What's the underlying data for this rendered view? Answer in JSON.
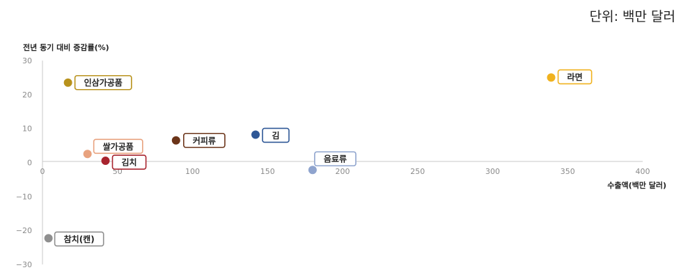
{
  "unit_note": "단위: 백만 달러",
  "chart_data": {
    "type": "scatter",
    "xlabel": "수출액(백만 달러)",
    "ylabel": "전년 동기 대비 증감률(%)",
    "xlim": [
      0,
      400
    ],
    "ylim": [
      -30,
      30
    ],
    "x_ticks": [
      "0",
      "50",
      "100",
      "150",
      "200",
      "250",
      "300",
      "350",
      "400"
    ],
    "y_ticks": [
      "30",
      "20",
      "10",
      "0",
      "−10",
      "−20",
      "−30"
    ],
    "grid": false,
    "points": [
      {
        "name": "인삼가공품",
        "x": 17,
        "y": 23.5,
        "color": "#B8921C"
      },
      {
        "name": "라면",
        "x": 339,
        "y": 25,
        "color": "#F0B21E"
      },
      {
        "name": "커피류",
        "x": 89,
        "y": 6.5,
        "color": "#6B3419"
      },
      {
        "name": "김",
        "x": 142,
        "y": 8.2,
        "color": "#2E5796"
      },
      {
        "name": "쌀가공품",
        "x": 30,
        "y": 2.5,
        "color": "#E8A27E"
      },
      {
        "name": "김치",
        "x": 42,
        "y": 0.5,
        "color": "#A8242E"
      },
      {
        "name": "음료류",
        "x": 180,
        "y": -2.2,
        "color": "#8FA4CE"
      },
      {
        "name": "참치(캔)",
        "x": 4,
        "y": -22.3,
        "color": "#8F8F8F"
      }
    ]
  }
}
